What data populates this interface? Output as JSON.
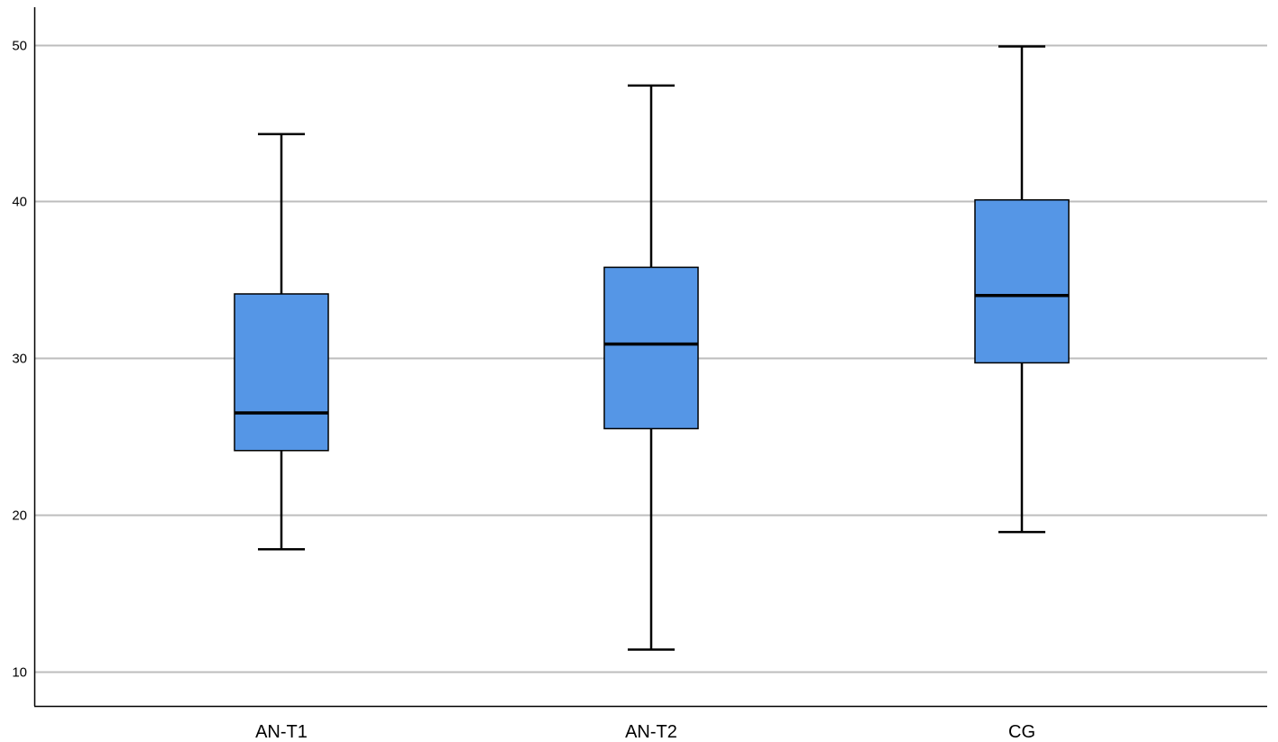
{
  "chart_data": {
    "type": "boxplot",
    "title": "",
    "xlabel": "",
    "ylabel": "",
    "categories": [
      "AN-T1",
      "AN-T2",
      "CG"
    ],
    "boxes": [
      {
        "category": "AN-T1",
        "min": 17.8,
        "q1": 24.1,
        "median": 26.5,
        "q3": 34.1,
        "max": 44.3
      },
      {
        "category": "AN-T2",
        "min": 11.4,
        "q1": 25.5,
        "median": 30.9,
        "q3": 35.8,
        "max": 47.4
      },
      {
        "category": "CG",
        "min": 18.9,
        "q1": 29.7,
        "median": 34.0,
        "q3": 40.1,
        "max": 49.9
      }
    ],
    "yticks": [
      10,
      20,
      30,
      40,
      50
    ],
    "ylim": [
      7.8,
      52.4
    ],
    "grid": true,
    "colors": {
      "box_fill": "#5596e6",
      "box_stroke": "#000000",
      "gridline": "#bdbdbd",
      "axis": "#000000"
    }
  }
}
